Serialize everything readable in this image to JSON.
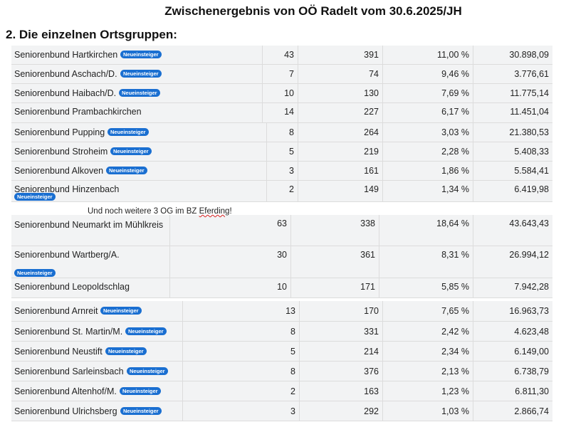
{
  "header": {
    "title": "Zwischenergebnis von OÖ Radelt vom 30.6.2025/JH",
    "subtitle": "2. Die einzelnen Ortsgruppen:"
  },
  "badge_label": "Neueinsteiger",
  "note": {
    "before": "Und noch weitere 3 OG im BZ ",
    "underlined": "Eferding",
    "after": "!"
  },
  "groups": [
    {
      "rows": [
        {
          "name": "Seniorenbund Hartkirchen",
          "badge": true,
          "count": "43",
          "km": "391",
          "pct": "11,00 %",
          "total": "30.898,09"
        },
        {
          "name": "Seniorenbund Aschach/D.",
          "badge": true,
          "count": "7",
          "km": "74",
          "pct": "9,46 %",
          "total": "3.776,61"
        },
        {
          "name": "Seniorenbund Haibach/D.",
          "badge": true,
          "count": "10",
          "km": "130",
          "pct": "7,69 %",
          "total": "11.775,14"
        },
        {
          "name": "Seniorenbund Prambachkirchen",
          "badge": false,
          "count": "14",
          "km": "227",
          "pct": "6,17 %",
          "total": "11.451,04"
        }
      ]
    },
    {
      "rows": [
        {
          "name": "Seniorenbund Pupping",
          "badge": true,
          "count": "8",
          "km": "264",
          "pct": "3,03 %",
          "total": "21.380,53"
        },
        {
          "name": "Seniorenbund Stroheim",
          "badge": true,
          "count": "5",
          "km": "219",
          "pct": "2,28 %",
          "total": "5.408,33"
        },
        {
          "name": "Seniorenbund Alkoven",
          "badge": true,
          "count": "3",
          "km": "161",
          "pct": "1,86 %",
          "total": "5.584,41"
        },
        {
          "name": "Seniorenbund Hinzenbach",
          "badge": true,
          "count": "2",
          "km": "149",
          "pct": "1,34 %",
          "total": "6.419,98"
        }
      ]
    },
    {
      "rows": [
        {
          "name": "Seniorenbund Neumarkt im Mühlkreis",
          "badge": false,
          "count": "63",
          "km": "338",
          "pct": "18,64 %",
          "total": "43.643,43"
        },
        {
          "name": "Seniorenbund Wartberg/A.",
          "badge": true,
          "count": "30",
          "km": "361",
          "pct": "8,31 %",
          "total": "26.994,12"
        },
        {
          "name": "Seniorenbund Leopoldschlag",
          "badge": false,
          "count": "10",
          "km": "171",
          "pct": "5,85 %",
          "total": "7.942,28"
        }
      ]
    },
    {
      "rows": [
        {
          "name": "Seniorenbund Arnreit",
          "badge": true,
          "count": "13",
          "km": "170",
          "pct": "7,65 %",
          "total": "16.963,73"
        },
        {
          "name": "Seniorenbund St. Martin/M.",
          "badge": true,
          "count": "8",
          "km": "331",
          "pct": "2,42 %",
          "total": "4.623,48"
        },
        {
          "name": "Seniorenbund Neustift",
          "badge": true,
          "count": "5",
          "km": "214",
          "pct": "2,34 %",
          "total": "6.149,00"
        },
        {
          "name": "Seniorenbund Sarleinsbach",
          "badge": true,
          "count": "8",
          "km": "376",
          "pct": "2,13 %",
          "total": "6.738,79"
        },
        {
          "name": "Seniorenbund Altenhof/M.",
          "badge": true,
          "count": "2",
          "km": "163",
          "pct": "1,23 %",
          "total": "6.811,30"
        },
        {
          "name": "Seniorenbund Ulrichsberg",
          "badge": true,
          "count": "3",
          "km": "292",
          "pct": "1,03 %",
          "total": "2.866,74"
        }
      ]
    }
  ]
}
